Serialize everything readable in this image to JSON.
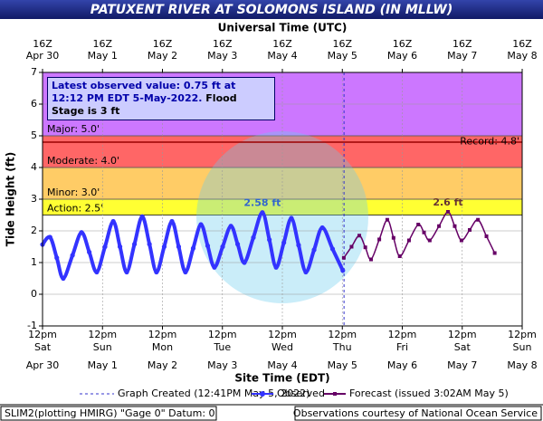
{
  "chart_data": {
    "type": "line",
    "title": "PATUXENT RIVER AT SOLOMONS ISLAND (IN MLLW)",
    "x2_axis_title": "Universal Time (UTC)",
    "xlabel": "Site Time (EDT)",
    "ylabel": "Tide Height (ft)",
    "xlim": [
      "2022-04-30T12:00",
      "2022-05-08T12:00"
    ],
    "xticks": [
      {
        "value": "2022-04-30T12:00",
        "label": "12pm"
      },
      {
        "value": "2022-05-01T12:00",
        "label": "12pm"
      },
      {
        "value": "2022-05-02T12:00",
        "label": "12pm"
      },
      {
        "value": "2022-05-03T12:00",
        "label": "12pm"
      },
      {
        "value": "2022-05-04T12:00",
        "label": "12pm"
      },
      {
        "value": "2022-05-05T12:00",
        "label": "12pm"
      },
      {
        "value": "2022-05-06T12:00",
        "label": "12pm"
      },
      {
        "value": "2022-05-07T12:00",
        "label": "12pm"
      },
      {
        "value": "2022-05-08T12:00",
        "label": "12pm"
      }
    ],
    "x_day_labels": [
      "Sat",
      "Sun",
      "Mon",
      "Tue",
      "Wed",
      "Thu",
      "Fri",
      "Sat",
      "Sun"
    ],
    "x_date_labels": [
      "Apr 30",
      "May 1",
      "May 2",
      "May 3",
      "May 4",
      "May 5",
      "May 6",
      "May 7",
      "May 8"
    ],
    "x2ticks": [
      {
        "value": "2022-04-30T12:00",
        "label": "16Z"
      },
      {
        "value": "2022-05-01T12:00",
        "label": "16Z"
      },
      {
        "value": "2022-05-02T12:00",
        "label": "16Z"
      },
      {
        "value": "2022-05-03T12:00",
        "label": "16Z"
      },
      {
        "value": "2022-05-04T12:00",
        "label": "16Z"
      },
      {
        "value": "2022-05-05T12:00",
        "label": "16Z"
      },
      {
        "value": "2022-05-06T12:00",
        "label": "16Z"
      },
      {
        "value": "2022-05-07T12:00",
        "label": "16Z"
      },
      {
        "value": "2022-05-08T12:00",
        "label": "16Z"
      }
    ],
    "ylim": [
      -1,
      7
    ],
    "yticks": [
      -1,
      0,
      1,
      2,
      3,
      4,
      5,
      6,
      7
    ],
    "grid": true,
    "flood_categories": [
      {
        "label": "Action: 2.5'",
        "value": 2.5,
        "color": "#ffff33"
      },
      {
        "label": "Minor: 3.0'",
        "value": 3.0,
        "color": "#ffcc66"
      },
      {
        "label": "Moderate: 4.0'",
        "value": 4.0,
        "color": "#ff6666"
      },
      {
        "label": "Major: 5.0'",
        "value": 5.0,
        "color": "#cc77ff"
      }
    ],
    "record": {
      "label": "Record: 4.8'",
      "value": 4.8,
      "color": "#990000"
    },
    "latest_observed": "Latest observed value: 0.75 ft at 12:12 PM EDT 5-May-2022.",
    "flood_stage_note": "Flood Stage is 3 ft",
    "graph_created": {
      "label": "Graph Created (12:41PM May 5, 2022)",
      "x": "2022-05-05T12:41",
      "color": "#3333cc"
    },
    "series": [
      {
        "name": "Observed",
        "color": "#3333ff",
        "marker": "circle",
        "peak_label": "2.58 ft",
        "label_color": "#3366cc",
        "x": [
          "2022-04-30T12:00",
          "2022-04-30T15:00",
          "2022-04-30T17:42",
          "2022-04-30T20:18",
          "2022-05-01T00:00",
          "2022-05-01T03:36",
          "2022-05-01T06:42",
          "2022-05-01T09:42",
          "2022-05-01T13:00",
          "2022-05-01T16:18",
          "2022-05-01T19:00",
          "2022-05-01T21:42",
          "2022-05-02T00:48",
          "2022-05-02T03:54",
          "2022-05-02T06:48",
          "2022-05-02T09:36",
          "2022-05-02T12:42",
          "2022-05-02T15:48",
          "2022-05-02T18:30",
          "2022-05-02T21:12",
          "2022-05-03T00:18",
          "2022-05-03T03:24",
          "2022-05-03T06:06",
          "2022-05-03T08:48",
          "2022-05-03T12:06",
          "2022-05-03T15:24",
          "2022-05-03T18:06",
          "2022-05-03T20:48",
          "2022-05-04T00:24",
          "2022-05-04T04:00",
          "2022-05-04T06:48",
          "2022-05-04T09:30",
          "2022-05-04T12:36",
          "2022-05-04T15:36",
          "2022-05-04T18:30",
          "2022-05-04T21:24",
          "2022-05-05T00:42",
          "2022-05-05T04:00",
          "2022-05-05T08:06",
          "2022-05-05T12:12"
        ],
        "values": [
          1.57,
          1.8,
          1.15,
          0.5,
          1.23,
          1.95,
          1.33,
          0.7,
          1.5,
          2.3,
          1.5,
          0.7,
          1.58,
          2.45,
          1.58,
          0.7,
          1.5,
          2.3,
          1.5,
          0.7,
          1.45,
          2.2,
          1.53,
          0.85,
          1.5,
          2.15,
          1.58,
          1.0,
          1.79,
          2.58,
          1.72,
          0.85,
          1.63,
          2.4,
          1.55,
          0.7,
          1.4,
          2.1,
          1.43,
          0.75
        ]
      },
      {
        "name": "Forecast (issued 3:02AM May 5)",
        "color": "#660066",
        "marker": "square",
        "peak_label": "2.6 ft",
        "label_color": "#663333",
        "x": [
          "2022-05-05T12:36",
          "2022-05-05T15:42",
          "2022-05-05T18:48",
          "2022-05-05T21:12",
          "2022-05-05T23:30",
          "2022-05-06T02:48",
          "2022-05-06T06:00",
          "2022-05-06T08:30",
          "2022-05-06T11:00",
          "2022-05-06T14:42",
          "2022-05-06T18:24",
          "2022-05-06T20:42",
          "2022-05-06T23:00",
          "2022-05-07T02:42",
          "2022-05-07T06:18",
          "2022-05-07T09:00",
          "2022-05-07T11:42",
          "2022-05-07T15:00",
          "2022-05-07T18:18",
          "2022-05-07T21:42",
          "2022-05-08T01:00"
        ],
        "values": [
          1.15,
          1.5,
          1.85,
          1.48,
          1.1,
          1.73,
          2.35,
          1.78,
          1.2,
          1.7,
          2.2,
          1.95,
          1.7,
          2.15,
          2.6,
          2.15,
          1.7,
          2.03,
          2.35,
          1.83,
          1.3
        ]
      }
    ],
    "footer_left": "SLIM2(plotting HMIRG) \"Gage 0\" Datum: 0'",
    "footer_right": "Observations courtesy of National Ocean Service"
  }
}
